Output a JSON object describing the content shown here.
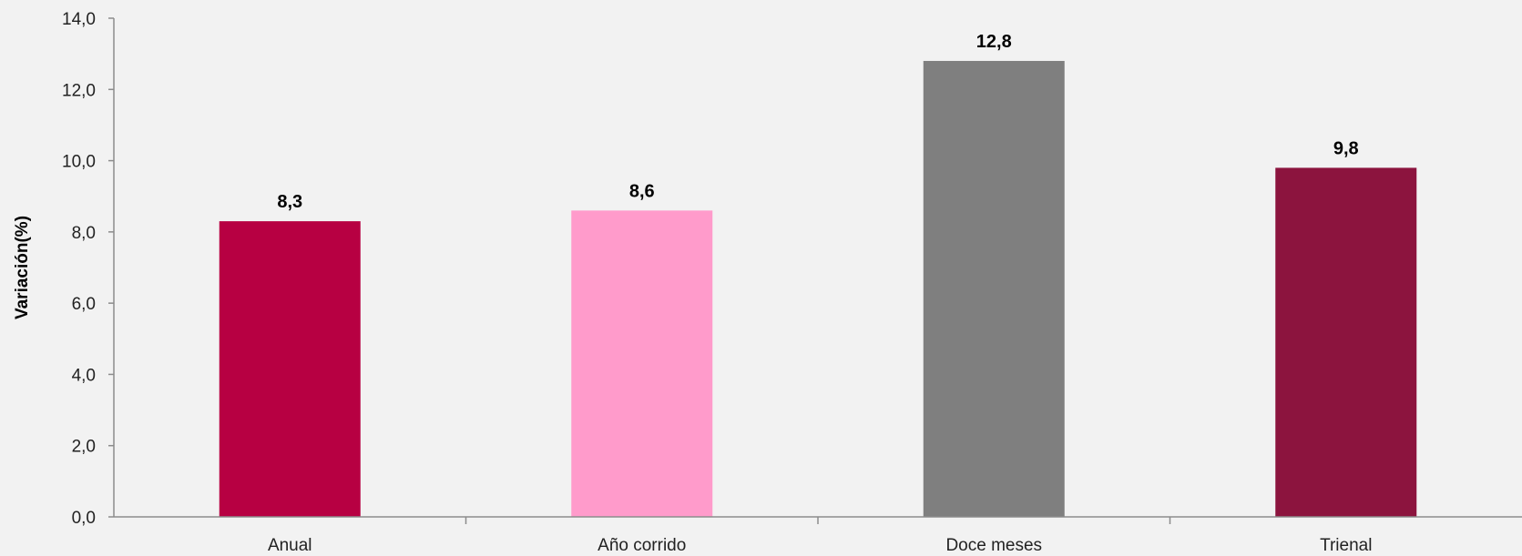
{
  "chart_data": {
    "type": "bar",
    "title": "",
    "xlabel": "",
    "ylabel": "Variación(%)",
    "categories": [
      "Anual",
      "Año corrido",
      "Doce meses",
      "Trienal"
    ],
    "values": [
      8.3,
      8.6,
      12.8,
      9.8
    ],
    "value_labels": [
      "8,3",
      "8,6",
      "12,8",
      "9,8"
    ],
    "colors": [
      "#b70042",
      "#ff9bcb",
      "#7f7f7f",
      "#8c143e"
    ],
    "ylim": [
      0,
      14
    ],
    "yticks": [
      0,
      2,
      4,
      6,
      8,
      10,
      12,
      14
    ],
    "ytick_labels": [
      "0,0",
      "2,0",
      "4,0",
      "6,0",
      "8,0",
      "10,0",
      "12,0",
      "14,0"
    ],
    "grid": false,
    "legend": "none"
  }
}
